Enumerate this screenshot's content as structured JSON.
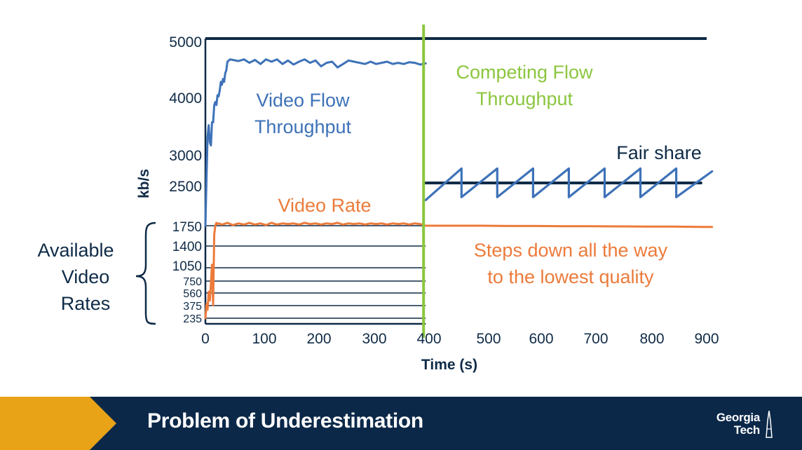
{
  "chart_data": {
    "type": "line",
    "xlabel": "Time (s)",
    "ylabel": "kb/s",
    "xticks": [
      "0",
      "100",
      "200",
      "300",
      "400",
      "500",
      "600",
      "700",
      "800",
      "900"
    ],
    "yticks": [
      "5000",
      "4000",
      "3000",
      "2500"
    ],
    "rate_ticks": [
      "1750",
      "1400",
      "1050",
      "750",
      "560",
      "375",
      "235"
    ],
    "available_rates_kbps": [
      235,
      375,
      560,
      750,
      1050,
      1400,
      1750
    ],
    "series": [
      {
        "name": "Video Flow Throughput",
        "color": "#3e72b8",
        "x": [
          0,
          2,
          4,
          6,
          8,
          10,
          12,
          14,
          16,
          18,
          20,
          22,
          24,
          26,
          28,
          30,
          32,
          34,
          36,
          38,
          40,
          45,
          50,
          60,
          70,
          80,
          90,
          100,
          110,
          120,
          130,
          140,
          150,
          160,
          170,
          180,
          190,
          200,
          210,
          220,
          230,
          240,
          250,
          260,
          270,
          280,
          290,
          300,
          310,
          320,
          330,
          340,
          350,
          360,
          370,
          380,
          390,
          400
        ],
        "y": [
          1750,
          2600,
          3300,
          3500,
          3200,
          3150,
          3550,
          3550,
          3850,
          3900,
          3850,
          4020,
          4000,
          4100,
          4250,
          4200,
          4300,
          4250,
          4400,
          4450,
          4600,
          4640,
          4630,
          4610,
          4640,
          4580,
          4630,
          4560,
          4640,
          4600,
          4640,
          4560,
          4620,
          4550,
          4600,
          4640,
          4580,
          4620,
          4520,
          4580,
          4600,
          4500,
          4560,
          4620,
          4600,
          4580,
          4560,
          4600,
          4560,
          4580,
          4600,
          4560,
          4580,
          4560,
          4590,
          4580,
          4550,
          4570
        ]
      },
      {
        "name": "Video Rate",
        "color": "#ec7b3b",
        "x": [
          0,
          2,
          4,
          6,
          8,
          10,
          12,
          14,
          16,
          18,
          20,
          22,
          24,
          30,
          40,
          50,
          60,
          70,
          80,
          90,
          100,
          110,
          120,
          130,
          140,
          150,
          160,
          170,
          180,
          190,
          200,
          210,
          220,
          230,
          240,
          250,
          260,
          270,
          280,
          290,
          300,
          310,
          320,
          330,
          340,
          350,
          360,
          370,
          380,
          390,
          400,
          450,
          500,
          550,
          600,
          650,
          700,
          750,
          800,
          850,
          900,
          920
        ],
        "y": [
          235,
          400,
          330,
          580,
          450,
          720,
          1100,
          380,
          1600,
          1750,
          1800,
          1780,
          1790,
          1770,
          1800,
          1760,
          1790,
          1770,
          1800,
          1770,
          1790,
          1760,
          1800,
          1770,
          1790,
          1780,
          1790,
          1770,
          1800,
          1780,
          1790,
          1770,
          1790,
          1780,
          1800,
          1770,
          1790,
          1780,
          1790,
          1770,
          1790,
          1780,
          1790,
          1770,
          1790,
          1780,
          1790,
          1770,
          1790,
          1780,
          1750,
          1750,
          1750,
          1745,
          1745,
          1740,
          1740,
          1738,
          1735,
          1735,
          1730,
          1730
        ]
      },
      {
        "name": "Fair share",
        "color": "#0f2b47",
        "x": [
          400,
          900
        ],
        "y": [
          2500,
          2500
        ]
      },
      {
        "name": "Competing Flow Throughput",
        "color": "#3e72b8",
        "x": [
          400,
          465,
          465,
          530,
          530,
          595,
          595,
          660,
          660,
          725,
          725,
          790,
          790,
          855,
          855,
          920
        ],
        "y": [
          2200,
          2750,
          2250,
          2750,
          2250,
          2750,
          2250,
          2750,
          2250,
          2750,
          2250,
          2750,
          2250,
          2750,
          2250,
          2700
        ]
      }
    ],
    "markers": [
      {
        "x": 400,
        "color": "#8cc63f"
      }
    ],
    "annotations": {
      "video_flow": [
        "Video Flow",
        "Throughput"
      ],
      "competing_flow": [
        "Competing Flow",
        "Throughput"
      ],
      "fair_share": "Fair share",
      "video_rate": "Video Rate",
      "steps_down": [
        "Steps down all the way",
        "to the lowest quality"
      ],
      "available_rates": [
        "Available",
        "Video",
        "Rates"
      ]
    },
    "colors": {
      "axis": "#0f2b47",
      "blue": "#3e72b8",
      "orange": "#ec7b3b",
      "green": "#8cc63f"
    }
  },
  "footer": {
    "title": "Problem of Underestimation",
    "logo_line1": "Georgia",
    "logo_line2": "Tech",
    "navy": "#0b2848",
    "gold": "#e8a317"
  }
}
